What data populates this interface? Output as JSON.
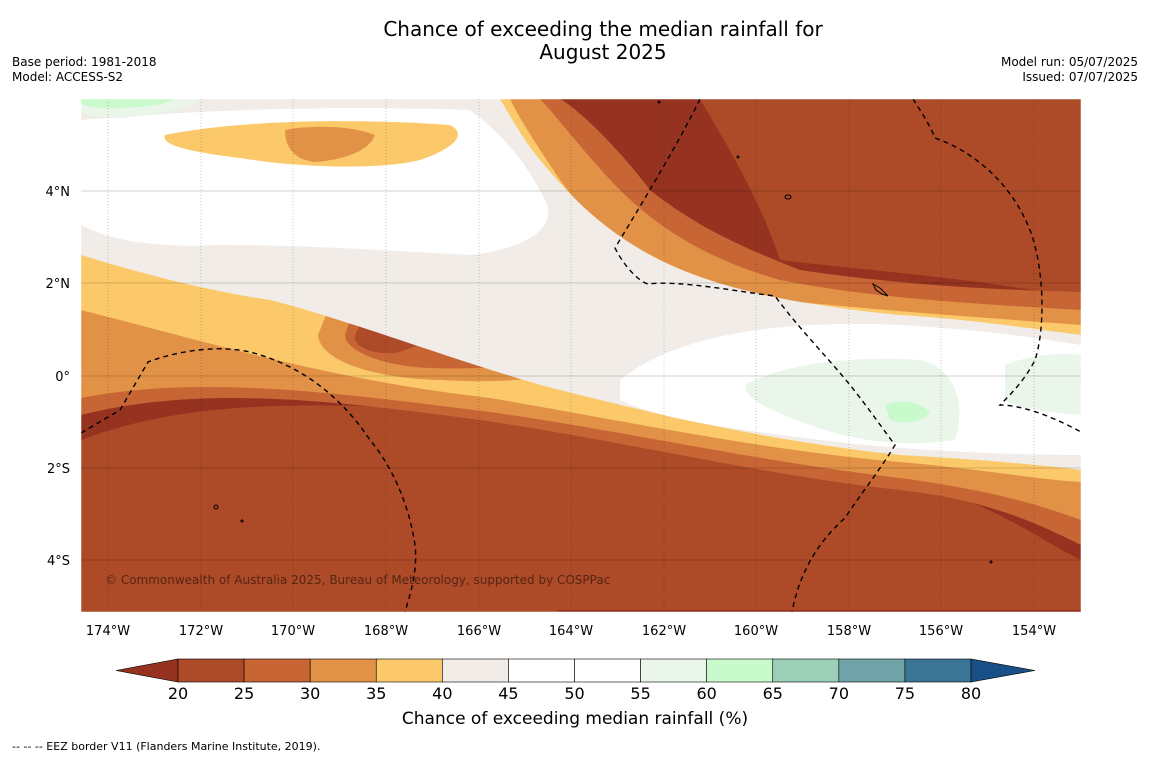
{
  "header": {
    "title_line1": "Chance of exceeding the median rainfall for",
    "title_line2": "August 2025",
    "base_period": "Base period: 1981-2018",
    "model": "Model: ACCESS-S2",
    "model_run": "Model run: 05/07/2025",
    "issued": "Issued: 07/07/2025"
  },
  "map": {
    "lon_labels": [
      "174°W",
      "172°W",
      "170°W",
      "168°W",
      "166°W",
      "164°W",
      "162°W",
      "160°W",
      "158°W",
      "156°W",
      "154°W"
    ],
    "lat_labels": [
      "4°N",
      "2°N",
      "0°",
      "2°S",
      "4°S"
    ],
    "copyright": "© Commonwealth of Australia 2025, Bureau of Meteorology, supported by COSPPac"
  },
  "colorbar": {
    "ticks": [
      "20",
      "25",
      "30",
      "35",
      "40",
      "45",
      "50",
      "55",
      "60",
      "65",
      "70",
      "75",
      "80"
    ],
    "colors": [
      "#953220",
      "#ad4a27",
      "#c86535",
      "#e19247",
      "#fcc96a",
      "#f1ece7",
      "#ffffff",
      "#ffffff",
      "#eaf6ea",
      "#c8facc",
      "#9ccfb8",
      "#6fa3a8",
      "#3b7595",
      "#184f86"
    ],
    "label": "Chance of exceeding median rainfall (%)"
  },
  "footnote": "--  --  -- EEZ border V11 (Flanders Marine Institute, 2019)."
}
